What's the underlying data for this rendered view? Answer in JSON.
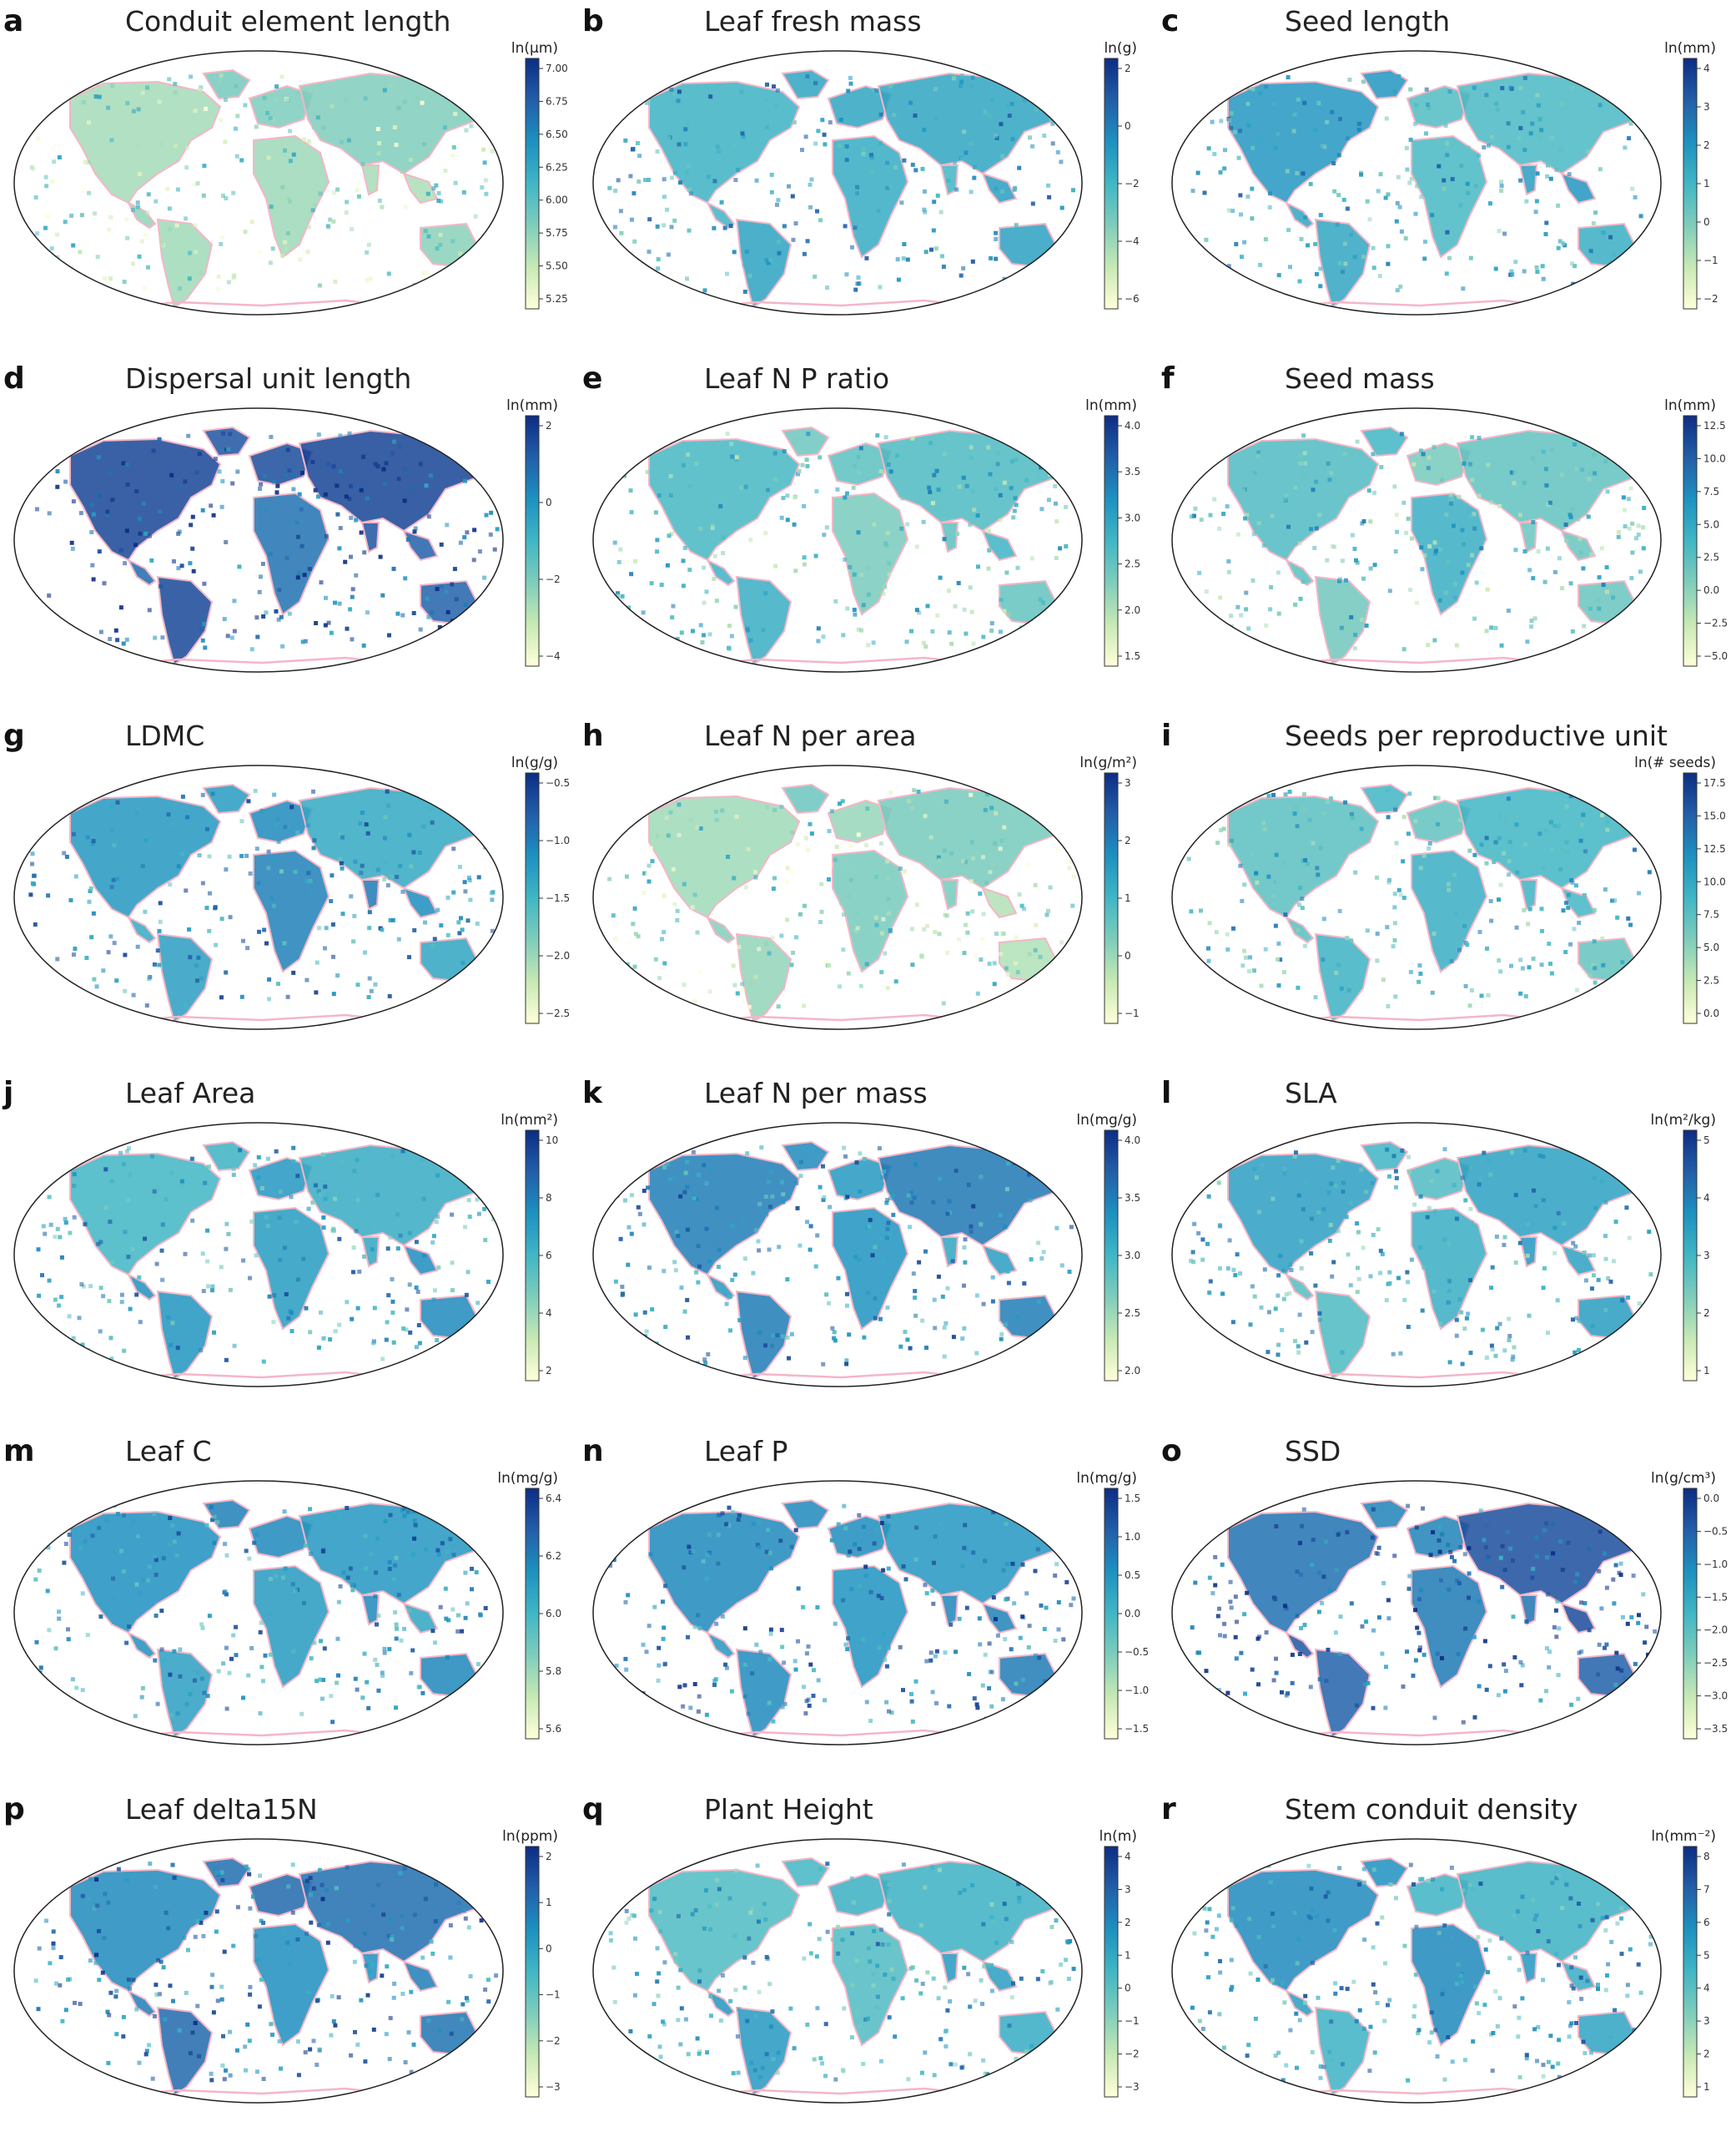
{
  "colors": {
    "colormap": [
      "#ffffd9",
      "#c7e9b4",
      "#7fcdbb",
      "#41b6c4",
      "#1d91c0",
      "#225ea8",
      "#0c2c84"
    ],
    "coastline": "#f4b6c6",
    "outline": "#222222",
    "land_bg": "#9fd3c7"
  },
  "panels": [
    {
      "letter": "a",
      "title": "Conduit element length",
      "unit": "ln(μm)",
      "ticks": [
        "7.00",
        "6.75",
        "6.50",
        "6.25",
        "6.00",
        "5.75",
        "5.50",
        "5.25"
      ],
      "level": 0.3
    },
    {
      "letter": "b",
      "title": "Leaf fresh mass",
      "unit": "ln(g)",
      "ticks": [
        "2",
        "0",
        "−2",
        "−4",
        "−6"
      ],
      "level": 0.6
    },
    {
      "letter": "c",
      "title": "Seed length",
      "unit": "ln(mm)",
      "ticks": [
        "4",
        "3",
        "2",
        "1",
        "0",
        "−1",
        "−2"
      ],
      "level": 0.55
    },
    {
      "letter": "d",
      "title": "Dispersal unit length",
      "unit": "ln(mm)",
      "ticks": [
        "2",
        "0",
        "−2",
        "−4"
      ],
      "level": 0.85
    },
    {
      "letter": "e",
      "title": "Leaf N P ratio",
      "unit": "ln(mm)",
      "ticks": [
        "4.0",
        "3.5",
        "3.0",
        "2.5",
        "2.0",
        "1.5"
      ],
      "level": 0.45
    },
    {
      "letter": "f",
      "title": "Seed mass",
      "unit": "ln(mm)",
      "ticks": [
        "12.5",
        "10.0",
        "7.5",
        "5.0",
        "2.5",
        "0.0",
        "−2.5",
        "−5.0"
      ],
      "level": 0.45
    },
    {
      "letter": "g",
      "title": "LDMC",
      "unit": "ln(g/g)",
      "ticks": [
        "−0.5",
        "−1.0",
        "−1.5",
        "−2.0",
        "−2.5"
      ],
      "level": 0.65
    },
    {
      "letter": "h",
      "title": "Leaf N per area",
      "unit": "ln(g/m²)",
      "ticks": [
        "3",
        "2",
        "1",
        "0",
        "−1"
      ],
      "level": 0.3
    },
    {
      "letter": "i",
      "title": "Seeds per reproductive unit",
      "unit": "ln(# seeds)",
      "ticks": [
        "17.5",
        "15.0",
        "12.5",
        "10.0",
        "7.5",
        "5.0",
        "2.5",
        "0.0"
      ],
      "level": 0.5
    },
    {
      "letter": "j",
      "title": "Leaf Area",
      "unit": "ln(mm²)",
      "ticks": [
        "10",
        "8",
        "6",
        "4",
        "2"
      ],
      "level": 0.6
    },
    {
      "letter": "k",
      "title": "Leaf N per mass",
      "unit": "ln(mg/g)",
      "ticks": [
        "4.0",
        "3.5",
        "3.0",
        "2.5",
        "2.0"
      ],
      "level": 0.65
    },
    {
      "letter": "l",
      "title": "SLA",
      "unit": "ln(m²/kg)",
      "ticks": [
        "5",
        "4",
        "3",
        "2",
        "1"
      ],
      "level": 0.55
    },
    {
      "letter": "m",
      "title": "Leaf C",
      "unit": "ln(mg/g)",
      "ticks": [
        "6.4",
        "6.2",
        "6.0",
        "5.8",
        "5.6"
      ],
      "level": 0.65
    },
    {
      "letter": "n",
      "title": "Leaf P",
      "unit": "ln(mg/g)",
      "ticks": [
        "1.5",
        "1.0",
        "0.5",
        "0.0",
        "−0.5",
        "−1.0",
        "−1.5"
      ],
      "level": 0.7
    },
    {
      "letter": "o",
      "title": "SSD",
      "unit": "ln(g/cm³)",
      "ticks": [
        "0.0",
        "−0.5",
        "−1.0",
        "−1.5",
        "−2.0",
        "−2.5",
        "−3.0",
        "−3.5"
      ],
      "level": 0.8
    },
    {
      "letter": "p",
      "title": "Leaf delta15N",
      "unit": "ln(ppm)",
      "ticks": [
        "2",
        "1",
        "0",
        "−1",
        "−2",
        "−3"
      ],
      "level": 0.75
    },
    {
      "letter": "q",
      "title": "Plant Height",
      "unit": "ln(m)",
      "ticks": [
        "4",
        "3",
        "2",
        "1",
        "0",
        "−1",
        "−2",
        "−3"
      ],
      "level": 0.55
    },
    {
      "letter": "r",
      "title": "Stem conduit density",
      "unit": "ln(mm⁻²)",
      "ticks": [
        "8",
        "7",
        "6",
        "5",
        "4",
        "3",
        "2",
        "1"
      ],
      "level": 0.6
    }
  ]
}
